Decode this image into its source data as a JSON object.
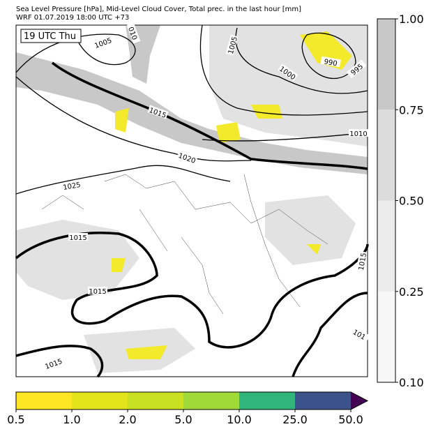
{
  "header": {
    "title": "Sea Level Pressure [hPa], Mid-Level Cloud Cover, Total prec. in the last hour [mm]",
    "subtitle": "WRF 01.07.2019 18:00 UTC +73"
  },
  "time_label": "19 UTC Thu",
  "isobar_labels": [
    "1005",
    "010",
    "1005",
    "1000",
    "990",
    "995",
    "1015",
    "1010",
    "1020",
    "1025",
    "1015",
    "1015",
    "1015",
    "1015",
    "101"
  ],
  "cloud_colorbar": {
    "labels": [
      "1.00",
      "0.75",
      "0.50",
      "0.25",
      "0.10"
    ],
    "colors": [
      "#c8c8c8",
      "#dcdcdc",
      "#ececec",
      "#f7f7f7"
    ]
  },
  "precip_colorbar": {
    "labels": [
      "0.5",
      "1.0",
      "2.0",
      "5.0",
      "10.0",
      "25.0",
      "50.0"
    ],
    "colors": [
      "#fde725",
      "#e3e41c",
      "#c9df22",
      "#a0da39",
      "#31b57b",
      "#3b528b"
    ],
    "extend_color": "#440154"
  }
}
